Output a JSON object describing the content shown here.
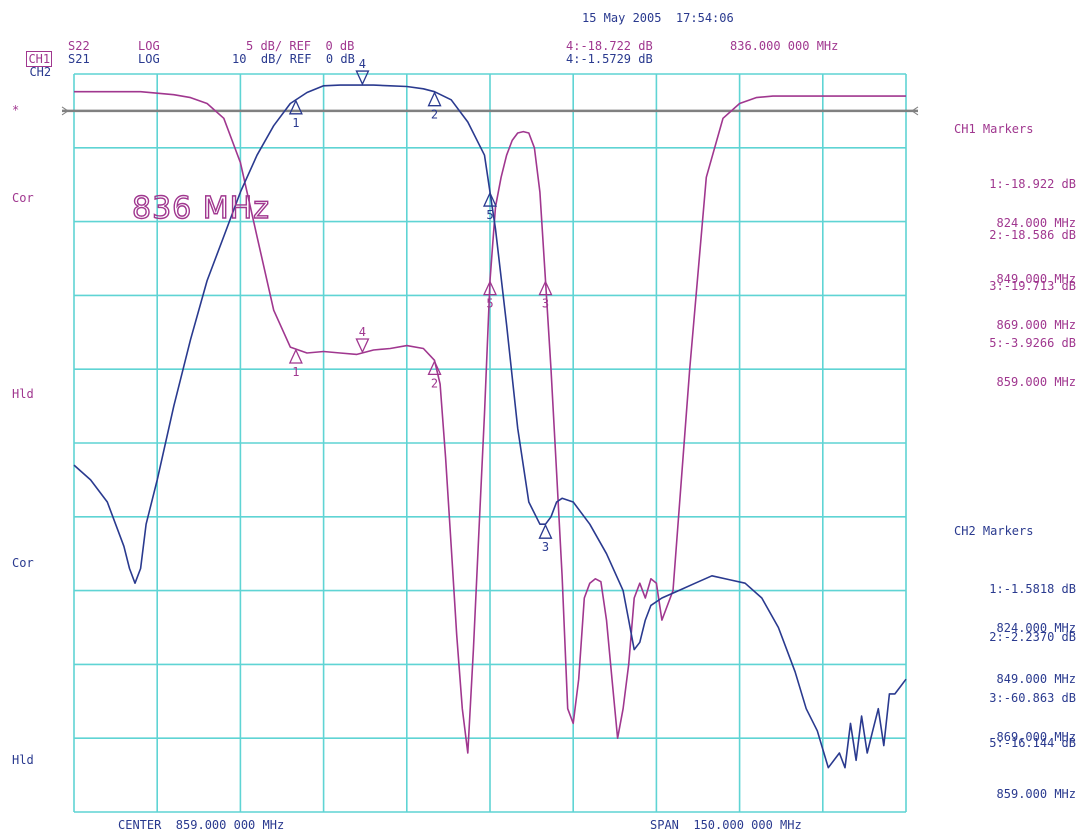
{
  "header": {
    "date_time": "15 May 2005  17:54:06",
    "ch1": {
      "label": "CH1",
      "param": "S22",
      "format": "LOG",
      "scale": "5 dB/ REF  0 dB"
    },
    "ch2": {
      "label": "CH2",
      "param": "S21",
      "format": "LOG",
      "scale": "10  dB/ REF  0 dB"
    },
    "marker_ch1_readout": "4:-18.722 dB",
    "marker_ch2_readout": "4:-1.5729 dB",
    "marker_freq": "836.000 000 MHz"
  },
  "left_labels": {
    "star": "*",
    "cor1": "Cor",
    "hld1": "Hld",
    "cor2": "Cor",
    "hld2": "Hld"
  },
  "annotation": "836 MHz",
  "footer": {
    "center": "CENTER  859.000 000 MHz",
    "span": "SPAN  150.000 000 MHz"
  },
  "ch1_markers": {
    "title": "CH1 Markers",
    "items": [
      {
        "value": "1:-18.922 dB",
        "freq": "824.000 MHz"
      },
      {
        "value": "2:-18.586 dB",
        "freq": "849.000 MHz"
      },
      {
        "value": "3:-19.713 dB",
        "freq": "869.000 MHz"
      },
      {
        "value": "5:-3.9266 dB",
        "freq": "859.000 MHz"
      }
    ]
  },
  "ch2_markers": {
    "title": "CH2 Markers",
    "items": [
      {
        "value": "1:-1.5818 dB",
        "freq": "824.000 MHz"
      },
      {
        "value": "2:-2.2370 dB",
        "freq": "849.000 MHz"
      },
      {
        "value": "3:-60.863 dB",
        "freq": "869.000 MHz"
      },
      {
        "value": "5:-16.144 dB",
        "freq": "859.000 MHz"
      }
    ]
  },
  "colors": {
    "grid": "#5fd4d4",
    "ch1": "#a0378f",
    "ch2": "#2a3a8f",
    "ref": "#808080"
  },
  "chart_data": {
    "type": "line",
    "x_range_mhz": [
      784,
      934
    ],
    "x_center_mhz": 859,
    "x_span_mhz": 150,
    "grid": true,
    "series": [
      {
        "name": "CH1 S22",
        "y_unit": "dB",
        "y_range": [
          -50,
          0
        ],
        "x": [
          784,
          787,
          790,
          793,
          796,
          799,
          802,
          805,
          808,
          811,
          814,
          817,
          820,
          823,
          826,
          829,
          832,
          835,
          838,
          841,
          844,
          847,
          849,
          850,
          851,
          852,
          853,
          854,
          855,
          856,
          857,
          858,
          859,
          860,
          861,
          862,
          863,
          864,
          865,
          866,
          867,
          868,
          869,
          870,
          871,
          872,
          873,
          874,
          875,
          876,
          877,
          878,
          879,
          880,
          881,
          882,
          883,
          884,
          885,
          886,
          887,
          888,
          889,
          890,
          892,
          895,
          898,
          901,
          904,
          907,
          910,
          913,
          916,
          919,
          922,
          925,
          928,
          931,
          934
        ],
        "y": [
          -1.2,
          -1.2,
          -1.2,
          -1.2,
          -1.2,
          -1.3,
          -1.4,
          -1.6,
          -2,
          -3,
          -6,
          -11,
          -16,
          -18.5,
          -18.9,
          -18.8,
          -18.9,
          -19,
          -18.7,
          -18.6,
          -18.4,
          -18.6,
          -19.4,
          -21,
          -26,
          -32,
          -38,
          -43,
          -46,
          -39,
          -31,
          -23,
          -14,
          -9,
          -7,
          -5.5,
          -4.5,
          -4,
          -3.9,
          -4,
          -5,
          -8,
          -14,
          -20,
          -27,
          -34,
          -43,
          -44,
          -41,
          -35.5,
          -34.5,
          -34.2,
          -34.4,
          -37,
          -41,
          -45,
          -43,
          -40,
          -35.5,
          -34.5,
          -35.5,
          -34.2,
          -34.5,
          -37,
          -35,
          -20,
          -7,
          -3,
          -2,
          -1.6,
          -1.5,
          -1.5,
          -1.5,
          -1.5,
          -1.5,
          -1.5,
          -1.5,
          -1.5,
          -1.5
        ]
      },
      {
        "name": "CH2 S21",
        "y_unit": "dB",
        "y_range": [
          -100,
          0
        ],
        "x": [
          784,
          787,
          790,
          793,
          794,
          795,
          796,
          797,
          799,
          802,
          805,
          808,
          811,
          814,
          817,
          820,
          823,
          826,
          829,
          832,
          835,
          838,
          841,
          844,
          847,
          849,
          852,
          855,
          858,
          859,
          860,
          862,
          864,
          866,
          868,
          869,
          870,
          871,
          872,
          874,
          877,
          880,
          883,
          884,
          885,
          886,
          887,
          888,
          890,
          893,
          896,
          899,
          902,
          905,
          908,
          911,
          914,
          916,
          918,
          920,
          922,
          923,
          924,
          925,
          926,
          927,
          928,
          929,
          930,
          931,
          932,
          933,
          934
        ],
        "y": [
          -53,
          -55,
          -58,
          -64,
          -67,
          -69,
          -67,
          -61,
          -55,
          -45,
          -36,
          -28,
          -22,
          -16,
          -11,
          -7,
          -4,
          -2.5,
          -1.6,
          -1.5,
          -1.5,
          -1.5,
          -1.6,
          -1.7,
          -2,
          -2.4,
          -3.5,
          -6.5,
          -11,
          -16,
          -21,
          -34,
          -48,
          -58,
          -61,
          -61,
          -60,
          -58,
          -57.5,
          -58,
          -61,
          -65,
          -70,
          -74,
          -78,
          -77,
          -74,
          -72,
          -71,
          -70,
          -69,
          -68,
          -68.5,
          -69,
          -71,
          -75,
          -81,
          -86,
          -89,
          -94,
          -92,
          -94,
          -88,
          -93,
          -87,
          -92,
          -89,
          -86,
          -91,
          -84,
          -84,
          -83,
          -82
        ]
      }
    ]
  }
}
